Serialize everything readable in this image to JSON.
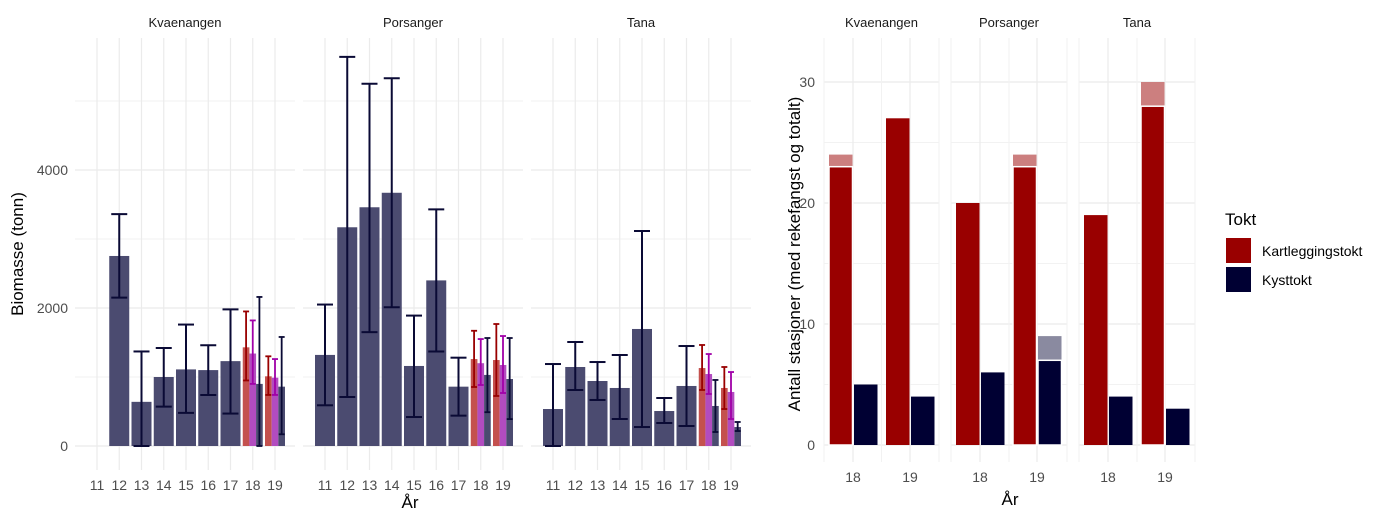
{
  "chart_data": [
    {
      "type": "bar",
      "xlabel": "År",
      "ylabel": "Biomasse (tonn)",
      "ylim": [
        0,
        5800
      ],
      "yticks": [
        0,
        2000,
        4000
      ],
      "grid": true,
      "x_categories": [
        "11",
        "12",
        "13",
        "14",
        "15",
        "16",
        "17",
        "18",
        "19"
      ],
      "series_colors": {
        "bar": [
          "#c4514e",
          "#b24cc0",
          "#4b4b70"
        ],
        "error": [
          "#990000",
          "#a000a8",
          "#0a0a35"
        ]
      },
      "facets": [
        {
          "name": "Kvaenangen",
          "points": [
            {
              "x": "12",
              "s": [
                {
                  "v": 2754,
                  "lo": 2150,
                  "hi": 3360
                }
              ]
            },
            {
              "x": "13",
              "s": [
                {
                  "v": 640,
                  "lo": 0,
                  "hi": 1370
                }
              ]
            },
            {
              "x": "14",
              "s": [
                {
                  "v": 1000,
                  "lo": 570,
                  "hi": 1420
                }
              ]
            },
            {
              "x": "15",
              "s": [
                {
                  "v": 1110,
                  "lo": 480,
                  "hi": 1760
                }
              ]
            },
            {
              "x": "16",
              "s": [
                {
                  "v": 1100,
                  "lo": 740,
                  "hi": 1460
                }
              ]
            },
            {
              "x": "17",
              "s": [
                {
                  "v": 1230,
                  "lo": 470,
                  "hi": 1980
                }
              ]
            },
            {
              "x": "18",
              "s": [
                {
                  "v": 1430,
                  "lo": 950,
                  "hi": 1950
                },
                {
                  "v": 1340,
                  "lo": 900,
                  "hi": 1820
                },
                {
                  "v": 900,
                  "lo": 0,
                  "hi": 2160
                }
              ]
            },
            {
              "x": "19",
              "s": [
                {
                  "v": 1010,
                  "lo": 740,
                  "hi": 1300
                },
                {
                  "v": 990,
                  "lo": 740,
                  "hi": 1260
                },
                {
                  "v": 860,
                  "lo": 170,
                  "hi": 1580
                }
              ]
            }
          ]
        },
        {
          "name": "Porsanger",
          "points": [
            {
              "x": "11",
              "s": [
                {
                  "v": 1320,
                  "lo": 590,
                  "hi": 2050
                }
              ]
            },
            {
              "x": "12",
              "s": [
                {
                  "v": 3170,
                  "lo": 710,
                  "hi": 5640
                }
              ]
            },
            {
              "x": "13",
              "s": [
                {
                  "v": 3460,
                  "lo": 1650,
                  "hi": 5250
                }
              ]
            },
            {
              "x": "14",
              "s": [
                {
                  "v": 3670,
                  "lo": 2010,
                  "hi": 5330
                }
              ]
            },
            {
              "x": "15",
              "s": [
                {
                  "v": 1160,
                  "lo": 420,
                  "hi": 1890
                }
              ]
            },
            {
              "x": "16",
              "s": [
                {
                  "v": 2400,
                  "lo": 1370,
                  "hi": 3430
                }
              ]
            },
            {
              "x": "17",
              "s": [
                {
                  "v": 860,
                  "lo": 440,
                  "hi": 1280
                }
              ]
            },
            {
              "x": "18",
              "s": [
                {
                  "v": 1260,
                  "lo": 855,
                  "hi": 1670
                },
                {
                  "v": 1200,
                  "lo": 884,
                  "hi": 1550
                },
                {
                  "v": 1030,
                  "lo": 490,
                  "hi": 1565
                }
              ]
            },
            {
              "x": "19",
              "s": [
                {
                  "v": 1246,
                  "lo": 725,
                  "hi": 1768
                },
                {
                  "v": 1174,
                  "lo": 768,
                  "hi": 1594
                },
                {
                  "v": 971,
                  "lo": 390,
                  "hi": 1565
                }
              ]
            }
          ]
        },
        {
          "name": "Tana",
          "points": [
            {
              "x": "11",
              "s": [
                {
                  "v": 536,
                  "lo": 0,
                  "hi": 1188
                }
              ]
            },
            {
              "x": "12",
              "s": [
                {
                  "v": 1145,
                  "lo": 812,
                  "hi": 1507
                }
              ]
            },
            {
              "x": "13",
              "s": [
                {
                  "v": 942,
                  "lo": 667,
                  "hi": 1217
                }
              ]
            },
            {
              "x": "14",
              "s": [
                {
                  "v": 841,
                  "lo": 391,
                  "hi": 1319
                }
              ]
            },
            {
              "x": "15",
              "s": [
                {
                  "v": 1696,
                  "lo": 275,
                  "hi": 3116
                }
              ]
            },
            {
              "x": "16",
              "s": [
                {
                  "v": 507,
                  "lo": 333,
                  "hi": 696
                }
              ]
            },
            {
              "x": "17",
              "s": [
                {
                  "v": 870,
                  "lo": 290,
                  "hi": 1449
                }
              ]
            },
            {
              "x": "18",
              "s": [
                {
                  "v": 1130,
                  "lo": 812,
                  "hi": 1464
                },
                {
                  "v": 1043,
                  "lo": 754,
                  "hi": 1333
                },
                {
                  "v": 580,
                  "lo": 203,
                  "hi": 957
                }
              ]
            },
            {
              "x": "19",
              "s": [
                {
                  "v": 841,
                  "lo": 536,
                  "hi": 1145
                },
                {
                  "v": 783,
                  "lo": 391,
                  "hi": 1072
                },
                {
                  "v": 275,
                  "lo": 217,
                  "hi": 348
                }
              ]
            }
          ]
        }
      ]
    },
    {
      "type": "bar",
      "xlabel": "År",
      "ylabel": "Antall stasjoner (med rekefangst og totalt)",
      "ylim": [
        0,
        32
      ],
      "yticks": [
        0,
        10,
        20,
        30
      ],
      "grid": true,
      "legend": {
        "title": "Tokt",
        "position": "right"
      },
      "series": [
        {
          "name": "Kartleggingstokt",
          "color": "#990000",
          "total_color": "#cc7f7f"
        },
        {
          "name": "Kysttokt",
          "color": "#000033",
          "total_color": "#8a8aa0"
        }
      ],
      "facets": [
        {
          "name": "Kvaenangen",
          "years": [
            {
              "x": "18",
              "values": [
                {
                  "catch": 23,
                  "total": 24
                },
                {
                  "catch": 5,
                  "total": 5
                }
              ]
            },
            {
              "x": "19",
              "values": [
                {
                  "catch": 27,
                  "total": 27
                },
                {
                  "catch": 4,
                  "total": 4
                }
              ]
            }
          ]
        },
        {
          "name": "Porsanger",
          "years": [
            {
              "x": "18",
              "values": [
                {
                  "catch": 20,
                  "total": 20
                },
                {
                  "catch": 6,
                  "total": 6
                }
              ]
            },
            {
              "x": "19",
              "values": [
                {
                  "catch": 23,
                  "total": 24
                },
                {
                  "catch": 7,
                  "total": 9
                }
              ]
            }
          ]
        },
        {
          "name": "Tana",
          "years": [
            {
              "x": "18",
              "values": [
                {
                  "catch": 19,
                  "total": 19
                },
                {
                  "catch": 4,
                  "total": 4
                }
              ]
            },
            {
              "x": "19",
              "values": [
                {
                  "catch": 28,
                  "total": 30
                },
                {
                  "catch": 3,
                  "total": 3
                }
              ]
            }
          ]
        }
      ]
    }
  ]
}
